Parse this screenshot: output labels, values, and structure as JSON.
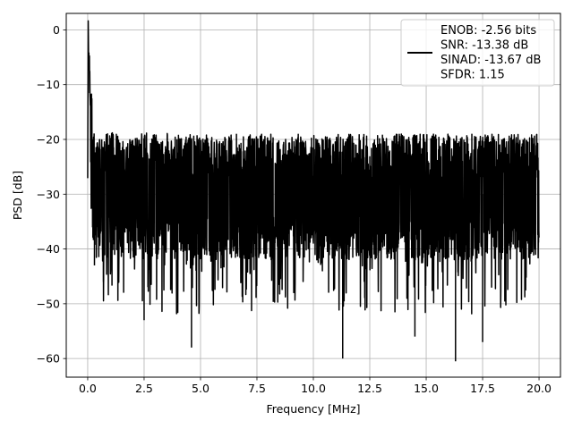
{
  "chart_data": {
    "type": "line",
    "xlabel": "Frequency [MHz]",
    "ylabel": "PSD [dB]",
    "xlim": [
      -0.95,
      20.95
    ],
    "ylim": [
      -63.4,
      3.0
    ],
    "xticks": [
      0.0,
      2.5,
      5.0,
      7.5,
      10.0,
      12.5,
      15.0,
      17.5,
      20.0
    ],
    "xtick_labels": [
      "0.0",
      "2.5",
      "5.0",
      "7.5",
      "10.0",
      "12.5",
      "15.0",
      "17.5",
      "20.0"
    ],
    "yticks": [
      0,
      -10,
      -20,
      -30,
      -40,
      -50,
      -60
    ],
    "ytick_labels": [
      "0",
      "−10",
      "−20",
      "−30",
      "−40",
      "−50",
      "−60"
    ],
    "grid": true,
    "legend_position": "top-right",
    "legend_lines": [
      "ENOB: -2.56 bits",
      "SNR: -13.38 dB",
      "SINAD: -13.67 dB",
      "SFDR: 1.15"
    ],
    "series": [
      {
        "color": "#000000",
        "x": [
          0.0,
          0.02,
          0.05,
          0.08,
          0.11,
          0.15,
          0.2,
          0.25,
          0.3,
          0.35,
          0.4,
          0.5,
          0.6,
          0.7,
          0.8,
          1.0,
          1.2,
          1.5,
          2.0,
          2.5,
          3.0,
          3.5,
          4.0,
          4.6,
          5.0,
          6.0,
          7.0,
          8.0,
          9.0,
          10.0,
          11.0,
          11.3,
          12.0,
          13.0,
          14.0,
          14.5,
          15.0,
          16.0,
          16.3,
          17.0,
          17.5,
          18.0,
          19.0,
          20.0
        ],
        "y": [
          -28,
          0,
          -5,
          -8,
          -12,
          -15,
          -18,
          -20,
          -43,
          -22,
          -24,
          -25,
          -26,
          -46,
          -27,
          -28,
          -28,
          -29,
          -30,
          -53,
          -30,
          -31,
          -30,
          -58,
          -30,
          -30,
          -31,
          -31,
          -31,
          -31,
          -31,
          -60,
          -31,
          -31,
          -31,
          -56,
          -31,
          -31,
          -60.5,
          -31,
          -57,
          -31,
          -31,
          -31
        ]
      }
    ]
  }
}
